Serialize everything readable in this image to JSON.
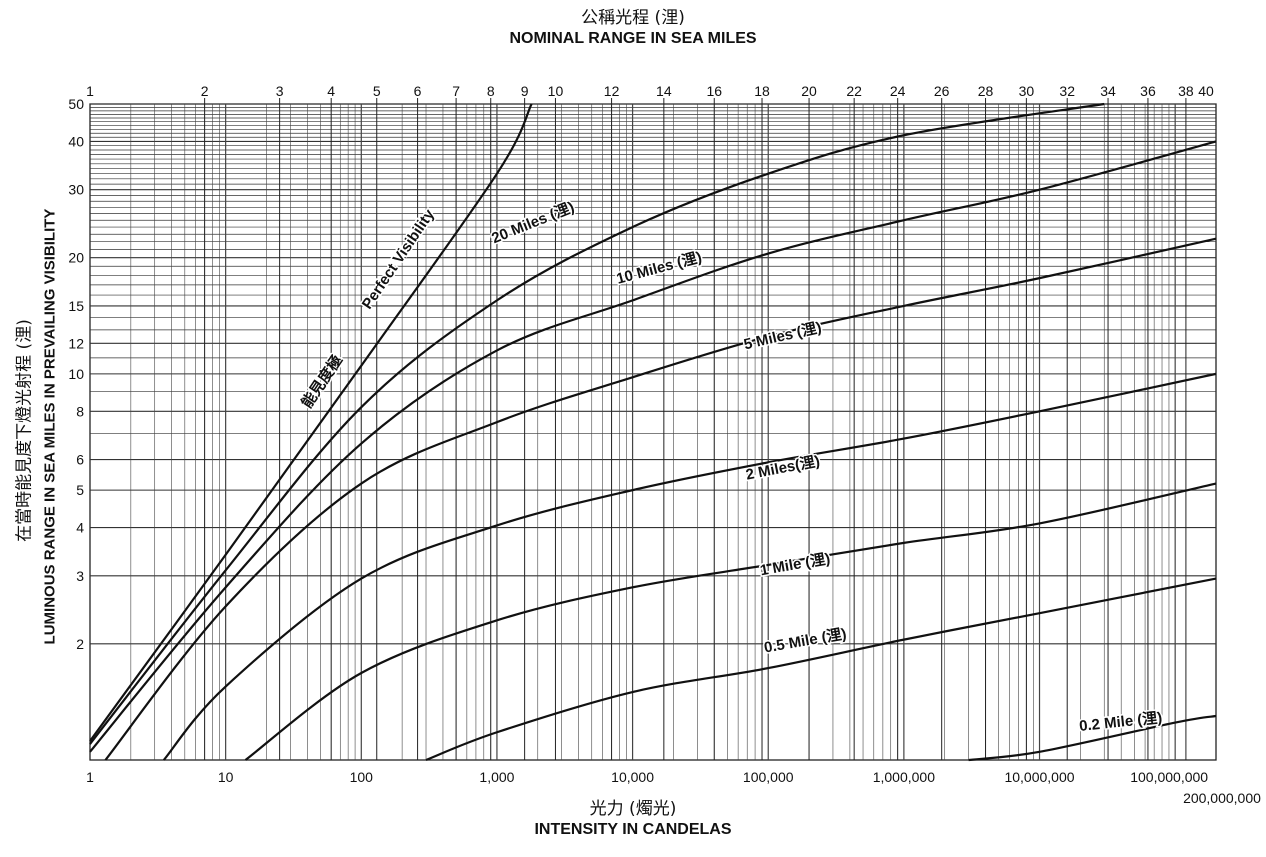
{
  "chart_data": {
    "type": "line",
    "title_cn": "公稱光程 (浬)",
    "title": "NOMINAL RANGE IN SEA MILES",
    "xlabel_cn": "光力 (燭光)",
    "xlabel": "INTENSITY IN CANDELAS",
    "ylabel_cn": "在當時能見度下燈光射程 (浬)",
    "ylabel": "LUMINOUS RANGE IN SEA MILES IN PREVAILING VISIBILITY",
    "x_scale": "log",
    "y_scale": "log",
    "xlim": [
      1,
      200000000
    ],
    "ylim": [
      1,
      50
    ],
    "grid": true,
    "x_ticks": [
      1,
      10,
      100,
      1000,
      10000,
      100000,
      1000000,
      10000000,
      100000000,
      200000000
    ],
    "x_tick_labels": [
      "1",
      "10",
      "100",
      "1,000",
      "10,000",
      "100,000",
      "1,000,000",
      "10,000,000",
      "100,000,000",
      "200,000,000"
    ],
    "y_ticks": [
      2,
      3,
      4,
      5,
      6,
      8,
      10,
      12,
      15,
      20,
      30,
      40,
      50
    ],
    "y_tick_labels": [
      "2",
      "3",
      "4",
      "5",
      "6",
      "8",
      "10",
      "12",
      "15",
      "20",
      "30",
      "40",
      "50"
    ],
    "top_axis_ticks": [
      1,
      2,
      3,
      4,
      5,
      6,
      7,
      8,
      9,
      10,
      12,
      14,
      16,
      18,
      20,
      22,
      24,
      26,
      28,
      30,
      32,
      34,
      36,
      38,
      40
    ],
    "top_axis_tick_labels": [
      "1",
      "2",
      "3",
      "4",
      "5",
      "6",
      "7",
      "8",
      "9",
      "10",
      "12",
      "14",
      "16",
      "18",
      "20",
      "22",
      "24",
      "26",
      "28",
      "30",
      "32",
      "34",
      "36",
      "38",
      "40"
    ],
    "top_axis_candela_values": [
      1,
      7,
      25,
      60,
      130,
      260,
      500,
      900,
      1600,
      2700,
      7000,
      17000,
      40000,
      90000,
      200000,
      430000,
      900000,
      1900000,
      4000000,
      8000000,
      16000000,
      32000000,
      63000000,
      120000000,
      230000000
    ],
    "series": [
      {
        "name": "Perfect Visibility",
        "label_extra": "能見度極",
        "x": [
          1,
          10,
          100,
          1000,
          1800
        ],
        "y": [
          1.12,
          3.4,
          10.5,
          33,
          50
        ]
      },
      {
        "name": "20 Miles (浬)",
        "x": [
          1,
          10,
          100,
          1000,
          10000,
          100000,
          1000000,
          30000000
        ],
        "y": [
          1.1,
          3.1,
          8.2,
          15.5,
          24,
          33,
          41.5,
          50
        ]
      },
      {
        "name": "10 Miles (浬)",
        "x": [
          1,
          10,
          100,
          1000,
          10000,
          100000,
          1000000,
          10000000,
          200000000
        ],
        "y": [
          1.05,
          2.8,
          6.6,
          11.5,
          15.5,
          20.5,
          25,
          30,
          40
        ]
      },
      {
        "name": "5 Miles (浬)",
        "x": [
          1.3,
          10,
          100,
          1000,
          10000,
          100000,
          1000000,
          10000000,
          200000000
        ],
        "y": [
          1,
          2.5,
          5.2,
          7.5,
          9.8,
          12.5,
          15,
          17.7,
          22.4
        ]
      },
      {
        "name": "2 Miles (浬)",
        "x": [
          3.5,
          10,
          100,
          1000,
          10000,
          100000,
          1000000,
          10000000,
          200000000
        ],
        "y": [
          1,
          1.55,
          2.95,
          4.05,
          5,
          5.9,
          6.8,
          8,
          10
        ]
      },
      {
        "name": "1 Mile (浬)",
        "x": [
          14,
          100,
          1000,
          10000,
          100000,
          1000000,
          10000000,
          200000000
        ],
        "y": [
          1,
          1.68,
          2.3,
          2.8,
          3.2,
          3.65,
          4.1,
          5.2
        ]
      },
      {
        "name": "0.5 Mile (浬)",
        "x": [
          300,
          1000,
          10000,
          100000,
          1000000,
          10000000,
          200000000
        ],
        "y": [
          1,
          1.18,
          1.5,
          1.73,
          2.05,
          2.4,
          2.95
        ]
      },
      {
        "name": "0.2 Mile (浬)",
        "x": [
          3000000,
          10000000,
          100000000,
          200000000
        ],
        "y": [
          1,
          1.05,
          1.25,
          1.3
        ]
      }
    ],
    "curve_labels": [
      {
        "text": "Perfect Visibility",
        "x": 200,
        "y": 19.5,
        "angle": -56
      },
      {
        "text": "能見度極",
        "x": 55,
        "y": 9.4,
        "angle": -56
      },
      {
        "text": "20 Miles (浬)",
        "x": 1900,
        "y": 24,
        "angle": -22
      },
      {
        "text": "10 Miles (浬)",
        "x": 16000,
        "y": 18.3,
        "angle": -15
      },
      {
        "text": "5 Miles (浬)",
        "x": 130000,
        "y": 12.2,
        "angle": -13
      },
      {
        "text": "2 Miles(浬)",
        "x": 130000,
        "y": 5.55,
        "angle": -11
      },
      {
        "text": "1 Mile (浬)",
        "x": 160000,
        "y": 3.12,
        "angle": -10
      },
      {
        "text": "0.5 Mile (浬)",
        "x": 190000,
        "y": 1.98,
        "angle": -10
      },
      {
        "text": "0.2 Mile (浬)",
        "x": 40000000,
        "y": 1.22,
        "angle": -6
      }
    ]
  }
}
